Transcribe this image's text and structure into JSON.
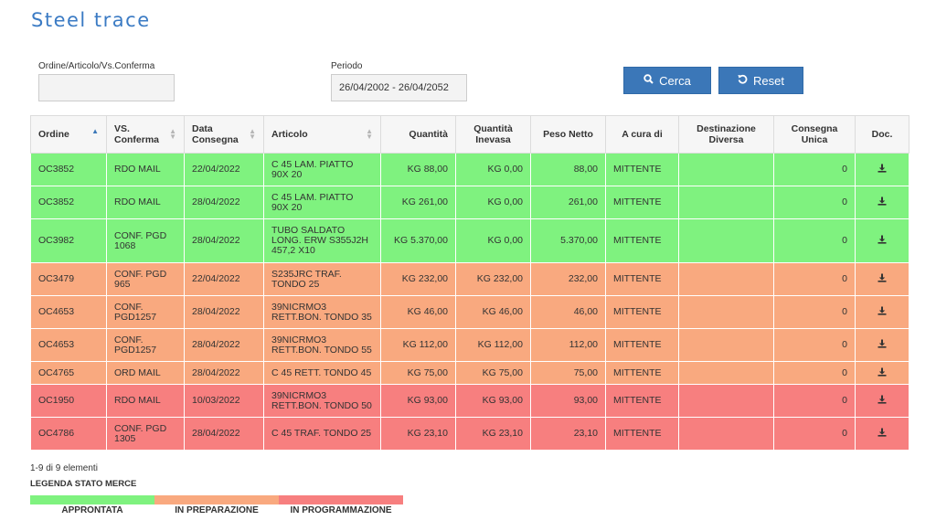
{
  "app": {
    "title": "Steel trace"
  },
  "filters": {
    "order_label": "Ordine/Articolo/Vs.Conferma",
    "order_value": "",
    "period_label": "Periodo",
    "period_value": "26/04/2002 - 26/04/2052",
    "search_label": "Cerca",
    "reset_label": "Reset",
    "search_icon": "search-icon",
    "reset_icon": "reset-icon"
  },
  "table": {
    "headers": {
      "ordine": "Ordine",
      "vs_conferma": "VS. Conferma",
      "data_consegna": "Data Consegna",
      "articolo": "Articolo",
      "quantita": "Quantità",
      "quantita_inevasa": "Quantità Inevasa",
      "peso_netto": "Peso Netto",
      "a_cura_di": "A cura di",
      "destinazione": "Destinazione Diversa",
      "consegna_unica": "Consegna Unica",
      "doc": "Doc."
    },
    "rows": [
      {
        "status": "green",
        "ordine": "OC3852",
        "vs": "RDO MAIL",
        "data": "22/04/2022",
        "articolo": "C 45 LAM. PIATTO 90X 20",
        "qta": "KG 88,00",
        "inevasa": "KG 0,00",
        "peso": "88,00",
        "cura": "MITTENTE",
        "dest": "",
        "unica": "0"
      },
      {
        "status": "green",
        "ordine": "OC3852",
        "vs": "RDO MAIL",
        "data": "28/04/2022",
        "articolo": "C 45 LAM. PIATTO 90X 20",
        "qta": "KG 261,00",
        "inevasa": "KG 0,00",
        "peso": "261,00",
        "cura": "MITTENTE",
        "dest": "",
        "unica": "0"
      },
      {
        "status": "green",
        "ordine": "OC3982",
        "vs": "CONF. PGD 1068",
        "data": "28/04/2022",
        "articolo": "TUBO SALDATO LONG. ERW S355J2H 457,2 X10",
        "qta": "KG 5.370,00",
        "inevasa": "KG 0,00",
        "peso": "5.370,00",
        "cura": "MITTENTE",
        "dest": "",
        "unica": "0"
      },
      {
        "status": "orange",
        "ordine": "OC3479",
        "vs": "CONF. PGD 965",
        "data": "22/04/2022",
        "articolo": "S235JRC TRAF. TONDO 25",
        "qta": "KG 232,00",
        "inevasa": "KG 232,00",
        "peso": "232,00",
        "cura": "MITTENTE",
        "dest": "",
        "unica": "0"
      },
      {
        "status": "orange",
        "ordine": "OC4653",
        "vs": "CONF. PGD1257",
        "data": "28/04/2022",
        "articolo": "39NICRMO3 RETT.BON. TONDO 35",
        "qta": "KG 46,00",
        "inevasa": "KG 46,00",
        "peso": "46,00",
        "cura": "MITTENTE",
        "dest": "",
        "unica": "0"
      },
      {
        "status": "orange",
        "ordine": "OC4653",
        "vs": "CONF. PGD1257",
        "data": "28/04/2022",
        "articolo": "39NICRMO3 RETT.BON. TONDO 55",
        "qta": "KG 112,00",
        "inevasa": "KG 112,00",
        "peso": "112,00",
        "cura": "MITTENTE",
        "dest": "",
        "unica": "0"
      },
      {
        "status": "orange",
        "ordine": "OC4765",
        "vs": "ORD MAIL",
        "data": "28/04/2022",
        "articolo": "C 45 RETT. TONDO 45",
        "qta": "KG 75,00",
        "inevasa": "KG 75,00",
        "peso": "75,00",
        "cura": "MITTENTE",
        "dest": "",
        "unica": "0"
      },
      {
        "status": "red",
        "ordine": "OC1950",
        "vs": "RDO MAIL",
        "data": "10/03/2022",
        "articolo": "39NICRMO3 RETT.BON. TONDO 50",
        "qta": "KG 93,00",
        "inevasa": "KG 93,00",
        "peso": "93,00",
        "cura": "MITTENTE",
        "dest": "",
        "unica": "0"
      },
      {
        "status": "red",
        "ordine": "OC4786",
        "vs": "CONF. PGD 1305",
        "data": "28/04/2022",
        "articolo": "C 45 TRAF. TONDO 25",
        "qta": "KG 23,10",
        "inevasa": "KG 23,10",
        "peso": "23,10",
        "cura": "MITTENTE",
        "dest": "",
        "unica": "0"
      }
    ]
  },
  "footer": {
    "count": "1-9 di 9 elementi"
  },
  "legend": {
    "title": "LEGENDA STATO MERCE",
    "items": [
      {
        "label": "APPRONTATA",
        "color": "#7ff27f"
      },
      {
        "label": "IN PREPARAZIONE",
        "color": "#f9a97f"
      },
      {
        "label": "IN PROGRAMMAZIONE",
        "color": "#f77f7f"
      }
    ]
  }
}
